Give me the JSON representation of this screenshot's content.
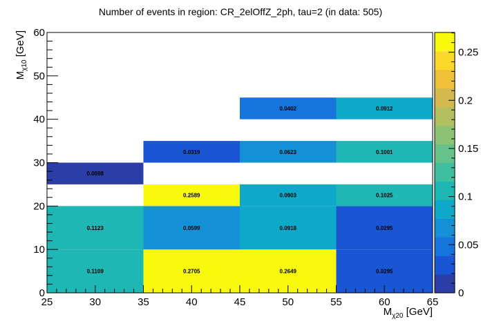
{
  "chart_data": {
    "type": "heatmap",
    "title": "Number of events in region: CR_2elOffZ_2ph, tau=2 (in data: 505)",
    "xlabel": {
      "main": "M",
      "sub": "χ20",
      "unit": " [GeV]"
    },
    "ylabel": {
      "main": "M",
      "sub": "χ10",
      "unit": " [GeV]"
    },
    "xlim": [
      25,
      65
    ],
    "ylim": [
      0,
      60
    ],
    "x_ticks": [
      25,
      30,
      35,
      40,
      45,
      50,
      55,
      60,
      65
    ],
    "y_ticks": [
      0,
      10,
      20,
      30,
      40,
      50,
      60
    ],
    "zlim": [
      0,
      0.2705
    ],
    "z_ticks": [
      0,
      0.05,
      0.1,
      0.15,
      0.2,
      0.25
    ],
    "z_tick_labels": [
      "0",
      "0.05",
      "0.1",
      "0.15",
      "0.2",
      "0.25"
    ],
    "cells": [
      {
        "x0": 25,
        "x1": 35,
        "y0": 0,
        "y1": 10,
        "value": 0.1109,
        "label": "0.1109"
      },
      {
        "x0": 35,
        "x1": 45,
        "y0": 0,
        "y1": 10,
        "value": 0.2705,
        "label": "0.2705"
      },
      {
        "x0": 45,
        "x1": 55,
        "y0": 0,
        "y1": 10,
        "value": 0.2649,
        "label": "0.2649"
      },
      {
        "x0": 55,
        "x1": 65,
        "y0": 0,
        "y1": 10,
        "value": 0.0295,
        "label": "0.0295"
      },
      {
        "x0": 25,
        "x1": 35,
        "y0": 10,
        "y1": 20,
        "value": 0.1123,
        "label": "0.1123"
      },
      {
        "x0": 35,
        "x1": 45,
        "y0": 10,
        "y1": 20,
        "value": 0.0599,
        "label": "0.0599"
      },
      {
        "x0": 45,
        "x1": 55,
        "y0": 10,
        "y1": 20,
        "value": 0.0918,
        "label": "0.0918"
      },
      {
        "x0": 55,
        "x1": 65,
        "y0": 10,
        "y1": 20,
        "value": 0.0295,
        "label": "0.0295"
      },
      {
        "x0": 35,
        "x1": 45,
        "y0": 20,
        "y1": 25,
        "value": 0.2589,
        "label": "0.2589"
      },
      {
        "x0": 45,
        "x1": 55,
        "y0": 20,
        "y1": 25,
        "value": 0.0903,
        "label": "0.0903"
      },
      {
        "x0": 55,
        "x1": 65,
        "y0": 20,
        "y1": 25,
        "value": 0.1025,
        "label": "0.1025"
      },
      {
        "x0": 25,
        "x1": 35,
        "y0": 25,
        "y1": 30,
        "value": 0.0098,
        "label": "0.0098"
      },
      {
        "x0": 35,
        "x1": 45,
        "y0": 30,
        "y1": 35,
        "value": 0.0319,
        "label": "0.0319"
      },
      {
        "x0": 45,
        "x1": 55,
        "y0": 30,
        "y1": 35,
        "value": 0.0623,
        "label": "0.0623"
      },
      {
        "x0": 55,
        "x1": 65,
        "y0": 30,
        "y1": 35,
        "value": 0.1001,
        "label": "0.1001"
      },
      {
        "x0": 45,
        "x1": 55,
        "y0": 40,
        "y1": 45,
        "value": 0.0402,
        "label": "0.0402"
      },
      {
        "x0": 55,
        "x1": 65,
        "y0": 40,
        "y1": 45,
        "value": 0.0912,
        "label": "0.0912"
      }
    ],
    "palette": [
      "#2b3da7",
      "#1a55d4",
      "#1675dd",
      "#1491d6",
      "#0ea9c9",
      "#1fb7b4",
      "#3fbfa0",
      "#66c28a",
      "#8ec274",
      "#b3be5f",
      "#d4b94f",
      "#f0c03a",
      "#fbd82a",
      "#f9f90e"
    ],
    "grid": false,
    "legend": "colorbar-right"
  }
}
